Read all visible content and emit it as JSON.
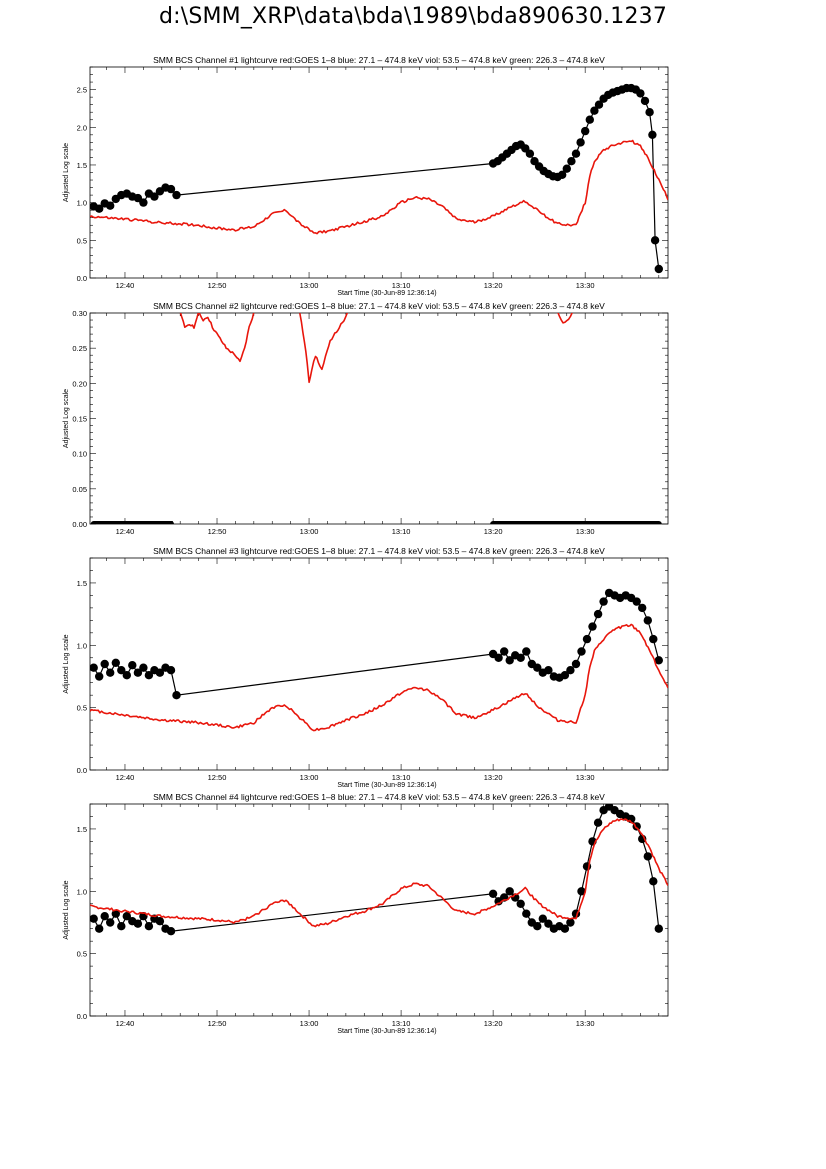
{
  "page": {
    "title": "d:\\SMM_XRP\\data\\bda\\1989\\bda890630.1237"
  },
  "chart_data": [
    {
      "type": "line",
      "title": "SMM BCS Channel #1 lightcurve  red:GOES 1–8  blue: 27.1 – 474.8 keV  viol: 53.5 – 474.8 keV  green: 226.3 – 474.8 keV",
      "xlabel": "Start Time (30-Jun-89 12:36:14)",
      "ylabel": "Adjusted Log scale",
      "xlim": [
        36.2,
        99.0
      ],
      "ylim": [
        0,
        2.8
      ],
      "xticks": [
        {
          "v": 40,
          "label": "12:40"
        },
        {
          "v": 50,
          "label": "12:50"
        },
        {
          "v": 60,
          "label": "13:00"
        },
        {
          "v": 70,
          "label": "13:10"
        },
        {
          "v": 80,
          "label": "13:20"
        },
        {
          "v": 90,
          "label": "13:30"
        }
      ],
      "yticks": [
        {
          "v": 0,
          "label": "0.0"
        },
        {
          "v": 0.5,
          "label": "0.5"
        },
        {
          "v": 1.0,
          "label": "1.0"
        },
        {
          "v": 1.5,
          "label": "1.5"
        },
        {
          "v": 2.0,
          "label": "2.0"
        },
        {
          "v": 2.5,
          "label": "2.5"
        }
      ],
      "series": [
        {
          "color": "#000000",
          "style": "line-markers",
          "x": [
            36.6,
            37.2,
            37.8,
            38.4,
            39.0,
            39.6,
            40.2,
            40.8,
            41.4,
            42.0,
            42.6,
            43.2,
            43.8,
            44.4,
            45.0,
            45.6,
            80.0,
            80.5,
            81.0,
            81.5,
            82.0,
            82.5,
            83.0,
            83.5,
            84.0,
            84.5,
            85.0,
            85.5,
            86.0,
            86.5,
            87.0,
            87.5,
            88.0,
            88.5,
            89.0,
            89.5,
            90.0,
            90.5,
            91.0,
            91.5,
            92.0,
            92.5,
            93.0,
            93.5,
            94.0,
            94.5,
            95.0,
            95.5,
            96.0,
            96.5,
            97.0,
            97.3,
            97.6,
            98.0
          ],
          "y": [
            0.95,
            0.92,
            0.99,
            0.96,
            1.05,
            1.1,
            1.12,
            1.08,
            1.06,
            1.0,
            1.12,
            1.08,
            1.15,
            1.2,
            1.18,
            1.1,
            1.52,
            1.55,
            1.6,
            1.65,
            1.7,
            1.75,
            1.77,
            1.72,
            1.65,
            1.55,
            1.48,
            1.42,
            1.38,
            1.35,
            1.34,
            1.37,
            1.45,
            1.55,
            1.65,
            1.8,
            1.95,
            2.1,
            2.22,
            2.3,
            2.38,
            2.43,
            2.46,
            2.48,
            2.5,
            2.52,
            2.52,
            2.5,
            2.45,
            2.35,
            2.2,
            1.9,
            0.5,
            0.12
          ]
        },
        {
          "color": "#e8160c",
          "style": "line",
          "x": [
            36.2,
            38,
            40,
            42,
            44,
            46,
            48,
            50,
            52,
            54,
            56,
            57.5,
            59,
            60.5,
            62,
            64,
            66,
            68,
            70,
            71.5,
            73,
            74.5,
            76,
            78,
            80,
            82,
            83.5,
            85,
            87,
            89,
            90,
            90.5,
            91,
            92,
            93,
            94,
            95,
            96,
            97,
            98,
            99
          ],
          "y": [
            0.82,
            0.8,
            0.78,
            0.76,
            0.73,
            0.72,
            0.7,
            0.66,
            0.64,
            0.68,
            0.85,
            0.9,
            0.72,
            0.6,
            0.62,
            0.68,
            0.75,
            0.82,
            1.0,
            1.07,
            1.05,
            0.95,
            0.78,
            0.74,
            0.82,
            0.95,
            1.02,
            0.88,
            0.72,
            0.7,
            1.0,
            1.35,
            1.55,
            1.7,
            1.76,
            1.8,
            1.82,
            1.75,
            1.55,
            1.3,
            1.05
          ]
        }
      ]
    },
    {
      "type": "line",
      "title": "SMM BCS Channel #2 lightcurve  red:GOES 1–8  blue: 27.1 – 474.8 keV  viol: 53.5 – 474.8 keV  green: 226.3 – 474.8 keV",
      "xlabel": "",
      "ylabel": "Adjusted Log scale",
      "xlim": [
        36.2,
        99.0
      ],
      "ylim": [
        0,
        0.3
      ],
      "xticks": [
        {
          "v": 40,
          "label": "12:40"
        },
        {
          "v": 50,
          "label": "12:50"
        },
        {
          "v": 60,
          "label": "13:00"
        },
        {
          "v": 70,
          "label": "13:10"
        },
        {
          "v": 80,
          "label": "13:20"
        },
        {
          "v": 90,
          "label": "13:30"
        }
      ],
      "yticks": [
        {
          "v": 0,
          "label": "0.00"
        },
        {
          "v": 0.05,
          "label": "0.05"
        },
        {
          "v": 0.1,
          "label": "0.10"
        },
        {
          "v": 0.15,
          "label": "0.15"
        },
        {
          "v": 0.2,
          "label": "0.20"
        },
        {
          "v": 0.25,
          "label": "0.25"
        },
        {
          "v": 0.3,
          "label": "0.30"
        }
      ],
      "series": [
        {
          "color": "#e8160c",
          "style": "line",
          "segments": [
            {
              "x": [
                46.0,
                46.5,
                47.0,
                47.5,
                48.0,
                48.5,
                49.0,
                49.5,
                50.0,
                50.5,
                51.0,
                51.5,
                52.0,
                52.5,
                53.0,
                53.5,
                54.0
              ],
              "y": [
                0.3,
                0.28,
                0.285,
                0.28,
                0.3,
                0.29,
                0.295,
                0.28,
                0.27,
                0.26,
                0.25,
                0.245,
                0.24,
                0.23,
                0.25,
                0.28,
                0.3
              ]
            },
            {
              "x": [
                59.0,
                59.5,
                59.8,
                60.0,
                60.3,
                60.7,
                61.0,
                61.4,
                61.8,
                62.3,
                62.8,
                63.3,
                63.8,
                64.2
              ],
              "y": [
                0.3,
                0.26,
                0.23,
                0.2,
                0.22,
                0.24,
                0.23,
                0.22,
                0.24,
                0.26,
                0.27,
                0.28,
                0.29,
                0.3
              ]
            },
            {
              "x": [
                87.0,
                87.4,
                87.8,
                88.2,
                88.6
              ],
              "y": [
                0.3,
                0.29,
                0.285,
                0.29,
                0.3
              ]
            }
          ]
        },
        {
          "color": "#000000",
          "style": "markers",
          "segments": [
            {
              "x": [
                36.6,
                45.2
              ],
              "y": [
                0,
                0
              ]
            },
            {
              "x": [
                80.0,
                98.0
              ],
              "y": [
                0,
                0
              ]
            }
          ]
        }
      ]
    },
    {
      "type": "line",
      "title": "SMM BCS Channel #3 lightcurve  red:GOES 1–8  blue: 27.1 – 474.8 keV  viol: 53.5 – 474.8 keV  green: 226.3 – 474.8 keV",
      "xlabel": "Start Time (30-Jun-89 12:36:14)",
      "ylabel": "Adjusted Log scale",
      "xlim": [
        36.2,
        99.0
      ],
      "ylim": [
        0,
        1.7
      ],
      "xticks": [
        {
          "v": 40,
          "label": "12:40"
        },
        {
          "v": 50,
          "label": "12:50"
        },
        {
          "v": 60,
          "label": "13:00"
        },
        {
          "v": 70,
          "label": "13:10"
        },
        {
          "v": 80,
          "label": "13:20"
        },
        {
          "v": 90,
          "label": "13:30"
        }
      ],
      "yticks": [
        {
          "v": 0,
          "label": "0.0"
        },
        {
          "v": 0.5,
          "label": "0.5"
        },
        {
          "v": 1.0,
          "label": "1.0"
        },
        {
          "v": 1.5,
          "label": "1.5"
        }
      ],
      "series": [
        {
          "color": "#000000",
          "style": "line-markers",
          "x": [
            36.6,
            37.2,
            37.8,
            38.4,
            39.0,
            39.6,
            40.2,
            40.8,
            41.4,
            42.0,
            42.6,
            43.2,
            43.8,
            44.4,
            45.0,
            45.6,
            80.0,
            80.6,
            81.2,
            81.8,
            82.4,
            83.0,
            83.6,
            84.2,
            84.8,
            85.4,
            86.0,
            86.6,
            87.2,
            87.8,
            88.4,
            89.0,
            89.6,
            90.2,
            90.8,
            91.4,
            92.0,
            92.6,
            93.2,
            93.8,
            94.4,
            95.0,
            95.6,
            96.2,
            96.8,
            97.4,
            98.0
          ],
          "y": [
            0.82,
            0.75,
            0.85,
            0.78,
            0.86,
            0.8,
            0.76,
            0.84,
            0.78,
            0.82,
            0.76,
            0.8,
            0.78,
            0.82,
            0.8,
            0.6,
            0.93,
            0.9,
            0.95,
            0.88,
            0.92,
            0.9,
            0.95,
            0.85,
            0.82,
            0.78,
            0.8,
            0.75,
            0.74,
            0.76,
            0.8,
            0.85,
            0.95,
            1.05,
            1.15,
            1.25,
            1.35,
            1.42,
            1.4,
            1.38,
            1.4,
            1.38,
            1.35,
            1.3,
            1.2,
            1.05,
            0.88
          ]
        },
        {
          "color": "#e8160c",
          "style": "line",
          "x": [
            36.2,
            38,
            40,
            42,
            44,
            46,
            48,
            50,
            52,
            54,
            56,
            57.5,
            59,
            60.5,
            62,
            64,
            66,
            68,
            70,
            71.5,
            73,
            74.5,
            76,
            78,
            80,
            82,
            83.5,
            85,
            87,
            89,
            90,
            90.5,
            91,
            92,
            93,
            94,
            95,
            96,
            97,
            98,
            99
          ],
          "y": [
            0.48,
            0.46,
            0.44,
            0.42,
            0.4,
            0.39,
            0.38,
            0.36,
            0.34,
            0.38,
            0.5,
            0.52,
            0.42,
            0.32,
            0.34,
            0.4,
            0.45,
            0.52,
            0.62,
            0.66,
            0.64,
            0.56,
            0.45,
            0.42,
            0.48,
            0.56,
            0.62,
            0.5,
            0.4,
            0.38,
            0.6,
            0.82,
            0.95,
            1.05,
            1.12,
            1.15,
            1.16,
            1.1,
            0.96,
            0.8,
            0.65
          ]
        }
      ]
    },
    {
      "type": "line",
      "title": "SMM BCS Channel #4 lightcurve  red:GOES 1–8  blue: 27.1 – 474.8 keV  viol: 53.5 – 474.8 keV  green: 226.3 – 474.8 keV",
      "xlabel": "Start Time (30-Jun-89 12:36:14)",
      "ylabel": "Adjusted Log scale",
      "xlim": [
        36.2,
        99.0
      ],
      "ylim": [
        0,
        1.7
      ],
      "xticks": [
        {
          "v": 40,
          "label": "12:40"
        },
        {
          "v": 50,
          "label": "12:50"
        },
        {
          "v": 60,
          "label": "13:00"
        },
        {
          "v": 70,
          "label": "13:10"
        },
        {
          "v": 80,
          "label": "13:20"
        },
        {
          "v": 90,
          "label": "13:30"
        }
      ],
      "yticks": [
        {
          "v": 0,
          "label": "0.0"
        },
        {
          "v": 0.5,
          "label": "0.5"
        },
        {
          "v": 1.0,
          "label": "1.0"
        },
        {
          "v": 1.5,
          "label": "1.5"
        }
      ],
      "series": [
        {
          "color": "#000000",
          "style": "line-markers",
          "x": [
            36.6,
            37.2,
            37.8,
            38.4,
            39.0,
            39.6,
            40.2,
            40.8,
            41.4,
            42.0,
            42.6,
            43.2,
            43.8,
            44.4,
            45.0,
            80.0,
            80.6,
            81.2,
            81.8,
            82.4,
            83.0,
            83.6,
            84.2,
            84.8,
            85.4,
            86.0,
            86.6,
            87.2,
            87.8,
            88.4,
            89.0,
            89.6,
            90.2,
            90.8,
            91.4,
            92.0,
            92.6,
            93.2,
            93.8,
            94.4,
            95.0,
            95.6,
            96.2,
            96.8,
            97.4,
            98.0
          ],
          "y": [
            0.78,
            0.7,
            0.8,
            0.75,
            0.82,
            0.72,
            0.8,
            0.76,
            0.74,
            0.8,
            0.72,
            0.78,
            0.76,
            0.7,
            0.68,
            0.98,
            0.92,
            0.95,
            1.0,
            0.95,
            0.9,
            0.82,
            0.75,
            0.72,
            0.78,
            0.74,
            0.7,
            0.72,
            0.7,
            0.75,
            0.82,
            1.0,
            1.2,
            1.4,
            1.55,
            1.65,
            1.68,
            1.65,
            1.62,
            1.6,
            1.58,
            1.52,
            1.42,
            1.28,
            1.08,
            0.7
          ]
        },
        {
          "color": "#e8160c",
          "style": "line",
          "x": [
            36.2,
            38,
            40,
            42,
            44,
            46,
            48,
            50,
            52,
            54,
            56,
            57.5,
            59,
            60.5,
            62,
            64,
            66,
            68,
            70,
            71.5,
            73,
            74.5,
            76,
            78,
            80,
            82,
            83.5,
            85,
            87,
            89,
            90,
            90.5,
            91,
            92,
            93,
            94,
            95,
            96,
            97,
            98,
            99
          ],
          "y": [
            0.88,
            0.86,
            0.84,
            0.82,
            0.8,
            0.79,
            0.78,
            0.77,
            0.75,
            0.8,
            0.9,
            0.93,
            0.82,
            0.72,
            0.74,
            0.8,
            0.84,
            0.9,
            1.02,
            1.06,
            1.04,
            0.94,
            0.84,
            0.82,
            0.88,
            0.96,
            1.02,
            0.9,
            0.8,
            0.78,
            1.0,
            1.25,
            1.38,
            1.5,
            1.56,
            1.58,
            1.56,
            1.48,
            1.35,
            1.18,
            1.05
          ]
        }
      ]
    }
  ]
}
